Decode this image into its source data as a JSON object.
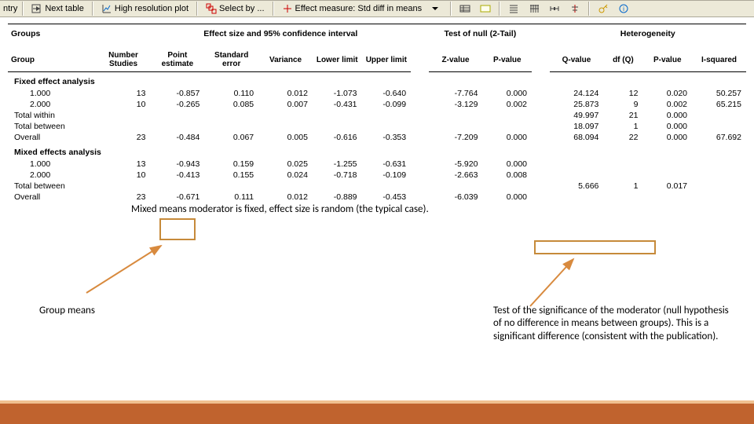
{
  "toolbar": {
    "entry_label": "ntry",
    "next_table": "Next table",
    "hires": "High resolution plot",
    "select_by": "Select by ...",
    "effect_measure_label": "Effect measure: Std diff in means"
  },
  "headers": {
    "groups": "Groups",
    "effect_ci": "Effect size and 95% confidence interval",
    "test_null": "Test of null (2-Tail)",
    "heterogeneity": "Heterogeneity",
    "group": "Group",
    "number_studies": "Number Studies",
    "point_estimate": "Point estimate",
    "standard_error": "Standard error",
    "variance": "Variance",
    "lower_limit": "Lower limit",
    "upper_limit": "Upper limit",
    "z_value": "Z-value",
    "p_value": "P-value",
    "q_value": "Q-value",
    "df_q": "df (Q)",
    "p_value_h": "P-value",
    "i_squared": "I-squared"
  },
  "sections": {
    "fixed": "Fixed effect analysis",
    "mixed": "Mixed effects analysis"
  },
  "rows": {
    "fixed": [
      {
        "label": "1.000",
        "indent": true,
        "n": "13",
        "pe": "-0.857",
        "se": "0.110",
        "var": "0.012",
        "ll": "-1.073",
        "ul": "-0.640",
        "z": "-7.764",
        "p": "0.000",
        "q": "24.124",
        "df": "12",
        "ph": "0.020",
        "i2": "50.257"
      },
      {
        "label": "2.000",
        "indent": true,
        "n": "10",
        "pe": "-0.265",
        "se": "0.085",
        "var": "0.007",
        "ll": "-0.431",
        "ul": "-0.099",
        "z": "-3.129",
        "p": "0.002",
        "q": "25.873",
        "df": "9",
        "ph": "0.002",
        "i2": "65.215"
      },
      {
        "label": "Total within",
        "indent": false,
        "q": "49.997",
        "df": "21",
        "ph": "0.000"
      },
      {
        "label": "Total between",
        "indent": false,
        "q": "18.097",
        "df": "1",
        "ph": "0.000"
      },
      {
        "label": "Overall",
        "indent": false,
        "n": "23",
        "pe": "-0.484",
        "se": "0.067",
        "var": "0.005",
        "ll": "-0.616",
        "ul": "-0.353",
        "z": "-7.209",
        "p": "0.000",
        "q": "68.094",
        "df": "22",
        "ph": "0.000",
        "i2": "67.692"
      }
    ],
    "mixed": [
      {
        "label": "1.000",
        "indent": true,
        "n": "13",
        "pe": "-0.943",
        "se": "0.159",
        "var": "0.025",
        "ll": "-1.255",
        "ul": "-0.631",
        "z": "-5.920",
        "p": "0.000"
      },
      {
        "label": "2.000",
        "indent": true,
        "n": "10",
        "pe": "-0.413",
        "se": "0.155",
        "var": "0.024",
        "ll": "-0.718",
        "ul": "-0.109",
        "z": "-2.663",
        "p": "0.008"
      },
      {
        "label": "Total between",
        "indent": false,
        "q": "5.666",
        "df": "1",
        "ph": "0.017"
      },
      {
        "label": "Overall",
        "indent": false,
        "n": "23",
        "pe": "-0.671",
        "se": "0.111",
        "var": "0.012",
        "ll": "-0.889",
        "ul": "-0.453",
        "z": "-6.039",
        "p": "0.000"
      }
    ]
  },
  "annotations": {
    "mixed_note": "Mixed means moderator is fixed, effect size is random (the typical case).",
    "group_means": "Group means",
    "test_sig": "Test of the significance of the moderator (null hypothesis of no difference in means between groups).  This is a significant difference (consistent with the publication)."
  },
  "colors": {
    "highlight_border": "#c68a3a",
    "arrow": "#d88a3e",
    "footer_band": "#c0632e",
    "footer_top": "#f0c090",
    "toolbar_bg": "#ece9d8"
  }
}
